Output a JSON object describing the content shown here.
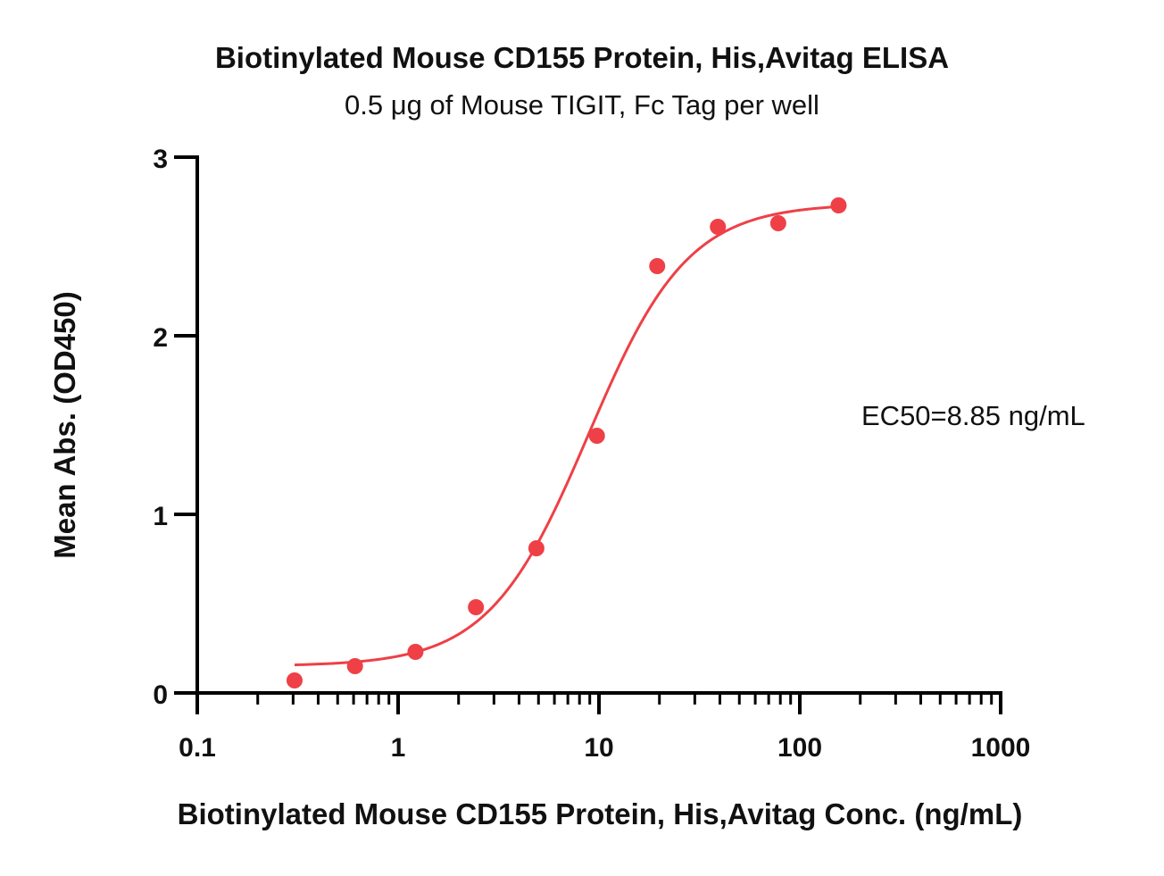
{
  "chart_data": {
    "type": "scatter",
    "title": "Biotinylated Mouse CD155 Protein, His,Avitag ELISA",
    "subtitle": "0.5 μg of Mouse TIGIT, Fc Tag per well",
    "xlabel": "Biotinylated Mouse CD155 Protein, His,Avitag Conc. (ng/mL)",
    "ylabel": "Mean Abs. (OD450)",
    "xscale": "log",
    "xlim": [
      0.1,
      1000
    ],
    "ylim": [
      0,
      3
    ],
    "x_ticks": [
      0.1,
      1,
      10,
      100,
      1000
    ],
    "x_tick_labels": [
      "0.1",
      "1",
      "10",
      "100",
      "1000"
    ],
    "y_ticks": [
      0,
      1,
      2,
      3
    ],
    "y_tick_labels": [
      "0",
      "1",
      "2",
      "3"
    ],
    "grid": false,
    "annotation": "EC50=8.85 ng/mL",
    "colors": {
      "series": "#ee4046",
      "axis": "#000000"
    },
    "series": [
      {
        "points": {
          "x": [
            0.305,
            0.61,
            1.22,
            2.44,
            4.88,
            9.77,
            19.5,
            39.1,
            78.1,
            156
          ],
          "y": [
            0.07,
            0.15,
            0.23,
            0.48,
            0.81,
            1.44,
            2.39,
            2.61,
            2.63,
            2.73
          ]
        },
        "fit": {
          "model": "4PL",
          "bottom": 0.15,
          "top": 2.74,
          "ec50": 8.85,
          "hill": 1.75,
          "x_range": [
            0.305,
            156
          ]
        }
      }
    ]
  }
}
